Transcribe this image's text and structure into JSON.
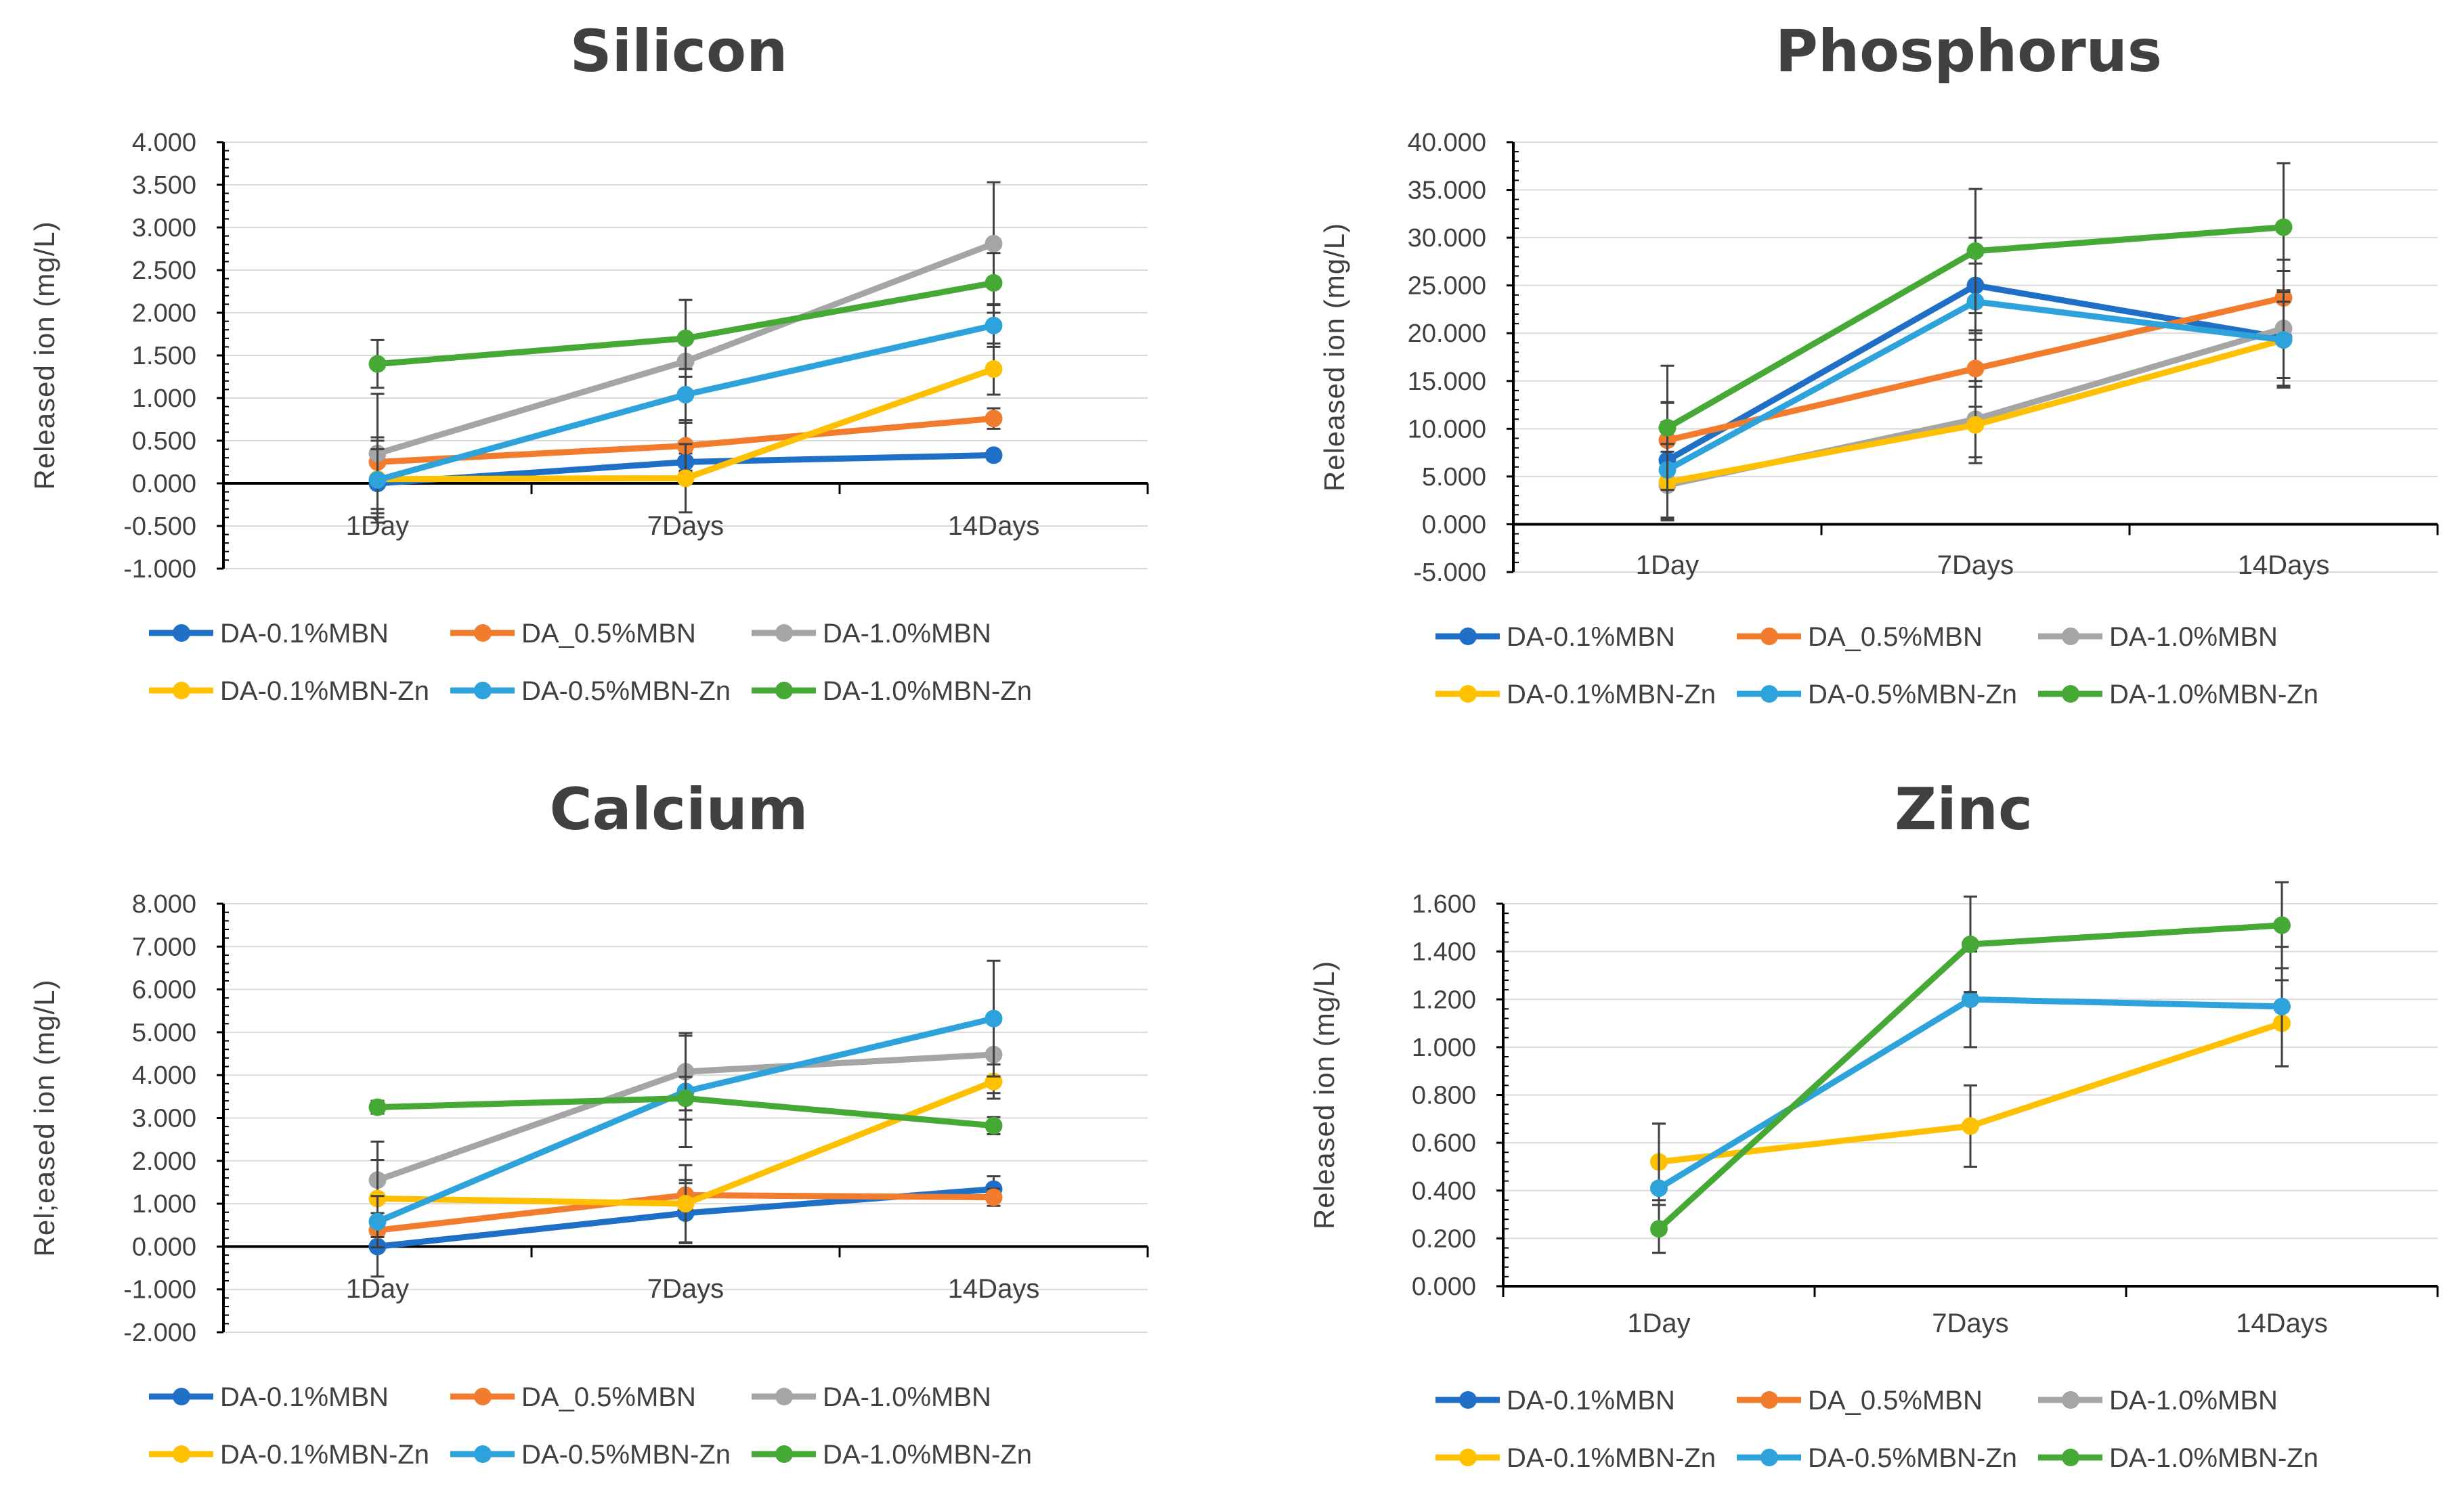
{
  "categories": [
    "1Day",
    "7Days",
    "14Days"
  ],
  "colors": {
    "DA-0.1%MBN": "#1f6fc6",
    "DA_0.5%MBN": "#f27c2e",
    "DA-1.0%MBN": "#a5a5a5",
    "DA-0.1%MBN-Zn": "#ffc000",
    "DA-0.5%MBN-Zn": "#2ea3db",
    "DA-1.0%MBN-Zn": "#46a935"
  },
  "legend": [
    "DA-0.1%MBN",
    "DA_0.5%MBN",
    "DA-1.0%MBN",
    "DA-0.1%MBN-Zn",
    "DA-0.5%MBN-Zn",
    "DA-1.0%MBN-Zn"
  ],
  "chart_data": [
    {
      "type": "line",
      "title": "Silicon",
      "ylabel": "Released ion (mg/L)",
      "ylim": [
        -1.0,
        4.0
      ],
      "ymajor": 0.5,
      "decimals": 3,
      "categories": [
        "1Day",
        "7Days",
        "14Days"
      ],
      "series": [
        {
          "name": "DA-0.1%MBN",
          "values": [
            0.0,
            0.25,
            0.33
          ],
          "errors": [
            0.4,
            0.1,
            0.06
          ]
        },
        {
          "name": "DA_0.5%MBN",
          "values": [
            0.25,
            0.44,
            0.76
          ],
          "errors": [
            0.25,
            0.3,
            0.12
          ]
        },
        {
          "name": "DA-1.0%MBN",
          "values": [
            0.35,
            1.43,
            2.81
          ],
          "errors": [
            0.7,
            0.72,
            0.72
          ]
        },
        {
          "name": "DA-0.1%MBN-Zn",
          "values": [
            0.05,
            0.06,
            1.34
          ],
          "errors": [
            0.35,
            0.4,
            0.3
          ]
        },
        {
          "name": "DA-0.5%MBN-Zn",
          "values": [
            0.04,
            1.04,
            1.85
          ],
          "errors": [
            0.5,
            0.3,
            0.25
          ]
        },
        {
          "name": "DA-1.0%MBN-Zn",
          "values": [
            1.4,
            1.7,
            2.35
          ],
          "errors": [
            0.28,
            0.45,
            0.35
          ]
        }
      ]
    },
    {
      "type": "line",
      "title": "Phosphorus",
      "ylabel": "Released ion (mg/L)",
      "ylim": [
        -5.0,
        40.0
      ],
      "ymajor": 5.0,
      "decimals": 3,
      "categories": [
        "1Day",
        "7Days",
        "14Days"
      ],
      "series": [
        {
          "name": "DA-0.1%MBN",
          "values": [
            6.7,
            25.0,
            19.5
          ],
          "errors": [
            6.0,
            5.0,
            5.0
          ]
        },
        {
          "name": "DA_0.5%MBN",
          "values": [
            8.8,
            16.3,
            23.7
          ],
          "errors": [
            4.0,
            4.0,
            4.0
          ]
        },
        {
          "name": "DA-1.0%MBN",
          "values": [
            4.1,
            11.0,
            20.5
          ],
          "errors": [
            3.5,
            4.0,
            6.0
          ]
        },
        {
          "name": "DA-0.1%MBN-Zn",
          "values": [
            4.4,
            10.4,
            19.3
          ],
          "errors": [
            4.0,
            4.0,
            5.0
          ]
        },
        {
          "name": "DA-0.5%MBN-Zn",
          "values": [
            5.7,
            23.3,
            19.3
          ],
          "errors": [
            5.0,
            4.0,
            4.0
          ]
        },
        {
          "name": "DA-1.0%MBN-Zn",
          "values": [
            10.1,
            28.6,
            31.1
          ],
          "errors": [
            6.5,
            6.5,
            6.7
          ]
        }
      ]
    },
    {
      "type": "line",
      "title": "Calcium",
      "ylabel": "Rel;eased ion (mg/L)",
      "ylim": [
        -2.0,
        8.0
      ],
      "ymajor": 1.0,
      "decimals": 3,
      "categories": [
        "1Day",
        "7Days",
        "14Days"
      ],
      "series": [
        {
          "name": "DA-0.1%MBN",
          "values": [
            0.0,
            0.78,
            1.34
          ],
          "errors": [
            0.7,
            0.7,
            0.3
          ]
        },
        {
          "name": "DA_0.5%MBN",
          "values": [
            0.38,
            1.2,
            1.15
          ],
          "errors": [
            0.4,
            0.35,
            0.2
          ]
        },
        {
          "name": "DA-1.0%MBN",
          "values": [
            1.55,
            4.08,
            4.48
          ],
          "errors": [
            0.9,
            0.9,
            0.9
          ]
        },
        {
          "name": "DA-0.1%MBN-Zn",
          "values": [
            1.12,
            1.0,
            3.85
          ],
          "errors": [
            0.9,
            0.9,
            0.4
          ]
        },
        {
          "name": "DA-0.5%MBN-Zn",
          "values": [
            0.58,
            3.62,
            5.32
          ],
          "errors": [
            0.6,
            1.3,
            1.35
          ]
        },
        {
          "name": "DA-1.0%MBN-Zn",
          "values": [
            3.25,
            3.46,
            2.82
          ],
          "errors": [
            0.15,
            0.5,
            0.2
          ]
        }
      ]
    },
    {
      "type": "line",
      "title": "Zinc",
      "ylabel": "Released ion (mg/L)",
      "ylim": [
        0.0,
        1.6
      ],
      "ymajor": 0.2,
      "decimals": 3,
      "categories": [
        "1Day",
        "7Days",
        "14Days"
      ],
      "series": [
        {
          "name": "DA-0.1%MBN-Zn",
          "values": [
            0.52,
            0.67,
            1.1
          ],
          "errors": [
            0.16,
            0.17,
            0.18
          ]
        },
        {
          "name": "DA-0.5%MBN-Zn",
          "values": [
            0.41,
            1.2,
            1.17
          ],
          "errors": [
            0.27,
            0.2,
            0.25
          ]
        },
        {
          "name": "DA-1.0%MBN-Zn",
          "values": [
            0.24,
            1.43,
            1.51
          ],
          "errors": [
            0.1,
            0.2,
            0.18
          ]
        }
      ]
    }
  ]
}
